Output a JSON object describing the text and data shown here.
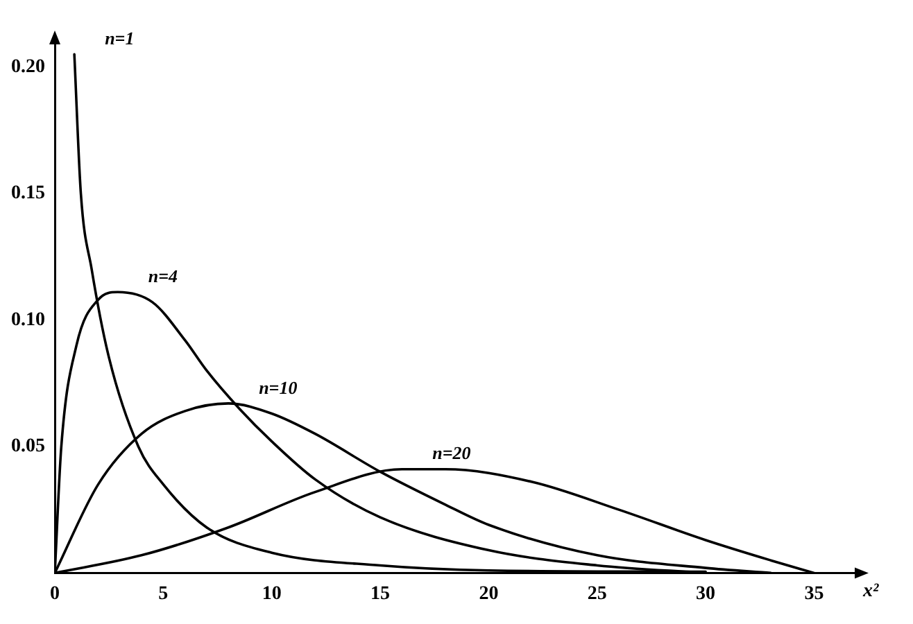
{
  "chart_data": {
    "type": "line",
    "xlabel": "x²",
    "xlim": [
      0,
      37
    ],
    "xticks": [
      0,
      5,
      10,
      15,
      20,
      25,
      30,
      35
    ],
    "ylim": [
      0,
      0.21
    ],
    "yticks": [
      {
        "value": 0.05,
        "label": "0.05"
      },
      {
        "value": 0.1,
        "label": "0.10"
      },
      {
        "value": 0.15,
        "label": "0.15"
      },
      {
        "value": 0.2,
        "label": "0.20"
      }
    ],
    "grid": false,
    "legend": false,
    "marker": "none",
    "line_style": "solid",
    "series": [
      {
        "name": "n=1",
        "color": "#000000",
        "x": [
          0.9,
          1.2,
          1.7,
          2.5,
          3.85,
          5,
          7,
          10,
          15,
          20,
          30
        ],
        "values": [
          0.205,
          0.15,
          0.12,
          0.085,
          0.05,
          0.035,
          0.018,
          0.008,
          0.003,
          0.001,
          0.0005
        ]
      },
      {
        "name": "n=4",
        "color": "#000000",
        "x": [
          0,
          0.3,
          1,
          2,
          2.9,
          4.5,
          6,
          7,
          8.5,
          10,
          12,
          15,
          20,
          25,
          30
        ],
        "values": [
          0,
          0.05,
          0.09,
          0.108,
          0.111,
          0.107,
          0.092,
          0.08,
          0.065,
          0.052,
          0.037,
          0.022,
          0.009,
          0.003,
          0
        ]
      },
      {
        "name": "n=10",
        "color": "#000000",
        "x": [
          0,
          2,
          4,
          6,
          8,
          10,
          12,
          15,
          18,
          20,
          25,
          30,
          33
        ],
        "values": [
          0,
          0.035,
          0.055,
          0.064,
          0.067,
          0.063,
          0.055,
          0.04,
          0.027,
          0.019,
          0.007,
          0.002,
          0
        ]
      },
      {
        "name": "n=20",
        "color": "#000000",
        "x": [
          0,
          4,
          8,
          12,
          16,
          18,
          22,
          26,
          30,
          33,
          35
        ],
        "values": [
          0,
          0.007,
          0.018,
          0.032,
          0.041,
          0.041,
          0.036,
          0.025,
          0.013,
          0.005,
          0
        ]
      }
    ]
  }
}
